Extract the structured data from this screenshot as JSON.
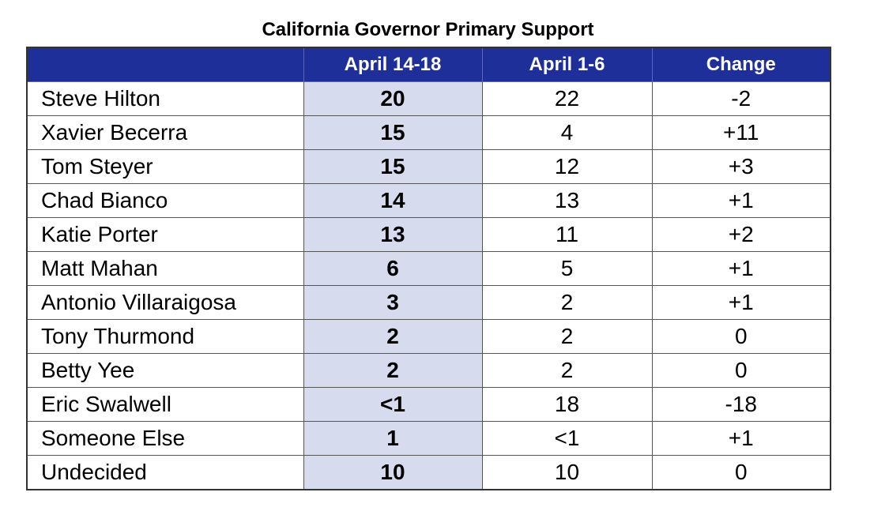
{
  "chart_data": {
    "type": "table",
    "title": "California Governor Primary Support",
    "columns": [
      "",
      "April 14-18",
      "April 1-6",
      "Change"
    ],
    "rows": [
      {
        "name": "Steve Hilton",
        "april_14_18": "20",
        "april_1_6": "22",
        "change": "-2"
      },
      {
        "name": "Xavier Becerra",
        "april_14_18": "15",
        "april_1_6": "4",
        "change": "+11"
      },
      {
        "name": "Tom Steyer",
        "april_14_18": "15",
        "april_1_6": "12",
        "change": "+3"
      },
      {
        "name": "Chad Bianco",
        "april_14_18": "14",
        "april_1_6": "13",
        "change": "+1"
      },
      {
        "name": "Katie Porter",
        "april_14_18": "13",
        "april_1_6": "11",
        "change": "+2"
      },
      {
        "name": "Matt Mahan",
        "april_14_18": "6",
        "april_1_6": "5",
        "change": "+1"
      },
      {
        "name": "Antonio Villaraigosa",
        "april_14_18": "3",
        "april_1_6": "2",
        "change": "+1"
      },
      {
        "name": "Tony Thurmond",
        "april_14_18": "2",
        "april_1_6": "2",
        "change": "0"
      },
      {
        "name": "Betty Yee",
        "april_14_18": "2",
        "april_1_6": "2",
        "change": "0"
      },
      {
        "name": "Eric Swalwell",
        "april_14_18": "<1",
        "april_1_6": "18",
        "change": "-18"
      },
      {
        "name": "Someone Else",
        "april_14_18": "1",
        "april_1_6": "<1",
        "change": "+1"
      },
      {
        "name": "Undecided",
        "april_14_18": "10",
        "april_1_6": "10",
        "change": "0"
      }
    ]
  },
  "colors": {
    "header_bg": "#1f2f99",
    "header_text": "#ffffff",
    "highlight_column_bg": "#d6dcee"
  }
}
